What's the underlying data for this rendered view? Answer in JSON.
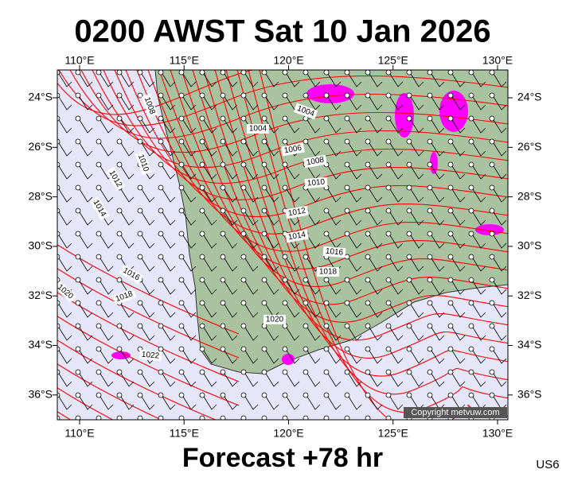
{
  "header": {
    "title": "0200 AWST Sat 10 Jan 2026"
  },
  "footer": {
    "title": "Forecast +78 hr",
    "code": "US6"
  },
  "copyright": "Copyright metvuw.com",
  "lon_labels": [
    "110°E",
    "115°E",
    "120°E",
    "125°E",
    "130°E"
  ],
  "lat_labels": [
    "24°S",
    "26°S",
    "28°S",
    "30°S",
    "32°S",
    "34°S",
    "36°S"
  ],
  "isobar_labels": [
    "1008",
    "1004",
    "1004",
    "1006",
    "1008",
    "1010",
    "1012",
    "1014",
    "1016",
    "1018",
    "1020",
    "1022",
    "1020",
    "1018",
    "1016",
    "1014",
    "1012",
    "1010"
  ]
}
